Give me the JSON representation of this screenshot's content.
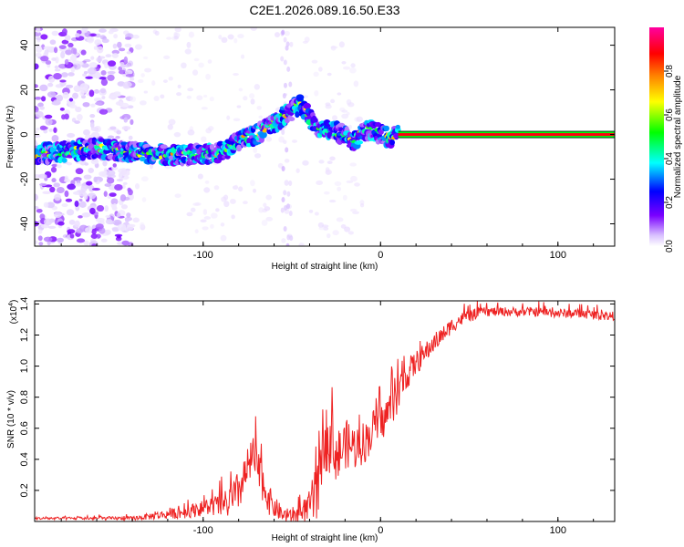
{
  "title": "C2E1.2026.089.16.50.E33",
  "chart_data": [
    {
      "type": "heatmap",
      "name": "spectrogram",
      "xlabel": "Height of straight line (km)",
      "ylabel": "Frequency (Hz)",
      "xlim": [
        -195,
        132
      ],
      "ylim": [
        -50,
        48
      ],
      "xticks": [
        -100,
        0,
        100
      ],
      "xtick_labels": [
        "-100",
        "0",
        "100"
      ],
      "yticks": [
        -40,
        -20,
        0,
        20,
        40
      ],
      "ytick_labels": [
        "-40",
        "-20",
        "0",
        "20",
        "40"
      ],
      "colorbar": {
        "label": "Normalized spectral amplitude",
        "range": [
          0,
          1
        ],
        "ticks": [
          0,
          0.2,
          0.4,
          0.6,
          0.8
        ],
        "tick_labels": [
          "0.0",
          "0.2",
          "0.4",
          "0.6",
          "0.8"
        ],
        "colormap": [
          "#ffffff",
          "#d8bfff",
          "#7a00ff",
          "#0000ff",
          "#00ffff",
          "#00ff00",
          "#ffff00",
          "#ff8000",
          "#ff0000",
          "#ff00a0"
        ]
      },
      "ridge": {
        "x": [
          -195,
          -180,
          -160,
          -140,
          -120,
          -100,
          -90,
          -80,
          -70,
          -60,
          -55,
          -50,
          -45,
          -40,
          -35,
          -30,
          -25,
          -20,
          -15,
          -10,
          -5,
          0,
          5,
          10,
          50,
          100,
          132
        ],
        "y": [
          -9,
          -8,
          -6,
          -8,
          -9,
          -9,
          -8,
          -3,
          0,
          5,
          8,
          11,
          14,
          7,
          3,
          2,
          1,
          0,
          -3,
          2,
          2,
          0,
          -1,
          0,
          0,
          0,
          0
        ]
      },
      "background_noise_band": [
        -195,
        -140
      ],
      "stable_tone_start": 10,
      "stable_tone_freq": 0
    },
    {
      "type": "line",
      "name": "snr",
      "xlabel": "Height of straight line (km)",
      "ylabel": "SNR (10 * v/v)",
      "y_multiplier": "(x10^4)",
      "y_multiplier_base": "(x10",
      "y_multiplier_exp": "4",
      "y_multiplier_close": ")",
      "xlim": [
        -195,
        132
      ],
      "ylim": [
        0,
        1.42
      ],
      "xticks": [
        -100,
        0,
        100
      ],
      "xtick_labels": [
        "-100",
        "0",
        "100"
      ],
      "yticks": [
        0.2,
        0.4,
        0.6,
        0.8,
        1.0,
        1.2,
        1.4
      ],
      "ytick_labels": [
        "0.2",
        "0.4",
        "0.6",
        "0.8",
        "1.0",
        "1.2",
        "1.4"
      ],
      "color": "#ee2222",
      "envelope": {
        "x": [
          -195,
          -140,
          -125,
          -110,
          -95,
          -88,
          -82,
          -76,
          -72,
          -68,
          -62,
          -55,
          -50,
          -45,
          -40,
          -36,
          -34,
          -32,
          -28,
          -24,
          -20,
          -14,
          -8,
          -4,
          0,
          4,
          10,
          15,
          20,
          25,
          30,
          35,
          40,
          45,
          50,
          55,
          60,
          70,
          80,
          90,
          100,
          110,
          120,
          132
        ],
        "y": [
          0.02,
          0.02,
          0.04,
          0.06,
          0.1,
          0.1,
          0.15,
          0.3,
          0.42,
          0.3,
          0.12,
          0.04,
          0.03,
          0.05,
          0.1,
          0.18,
          0.42,
          0.55,
          0.52,
          0.42,
          0.5,
          0.48,
          0.52,
          0.6,
          0.62,
          0.7,
          0.82,
          0.95,
          1.02,
          1.08,
          1.15,
          1.2,
          1.26,
          1.3,
          1.32,
          1.34,
          1.35,
          1.35,
          1.35,
          1.35,
          1.34,
          1.34,
          1.33,
          1.32
        ]
      },
      "noise_amplitude": {
        "x": [
          -195,
          -140,
          -100,
          -90,
          -80,
          -72,
          -65,
          -58,
          -50,
          -40,
          -35,
          -30,
          -20,
          -10,
          0,
          10,
          20,
          30,
          40,
          50,
          60,
          132
        ],
        "y": [
          0.008,
          0.012,
          0.05,
          0.08,
          0.14,
          0.14,
          0.12,
          0.06,
          0.04,
          0.1,
          0.25,
          0.22,
          0.16,
          0.14,
          0.12,
          0.12,
          0.08,
          0.06,
          0.05,
          0.04,
          0.03,
          0.03
        ]
      }
    }
  ]
}
